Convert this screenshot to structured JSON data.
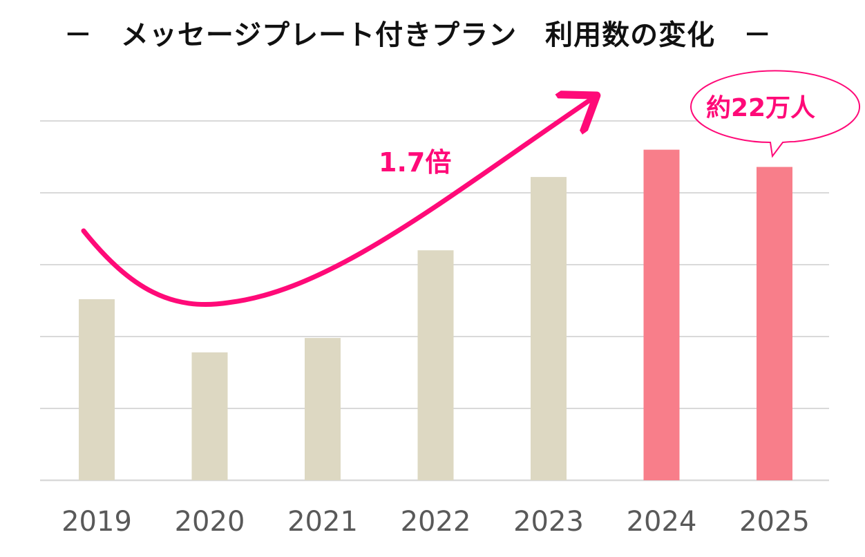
{
  "chart_data": {
    "type": "bar",
    "title": "－　メッセージプレート付きプラン　利用数の変化　－",
    "categories": [
      "2019",
      "2020",
      "2021",
      "2022",
      "2023",
      "2024",
      "2025"
    ],
    "values": [
      12.6,
      8.9,
      9.9,
      16.0,
      21.1,
      23.0,
      21.8
    ],
    "ylim": [
      0,
      25
    ],
    "grid": true,
    "bar_colors": [
      "#ddd8c2",
      "#ddd8c2",
      "#ddd8c2",
      "#ddd8c2",
      "#ddd8c2",
      "#f87e8a",
      "#f87e8a"
    ],
    "annotations": {
      "growth_label": "1.7倍",
      "callout_label": "約22万人"
    }
  },
  "colors": {
    "accent": "#ff0a78",
    "grid": "#d9d9d9",
    "tick_text": "#595959",
    "title_text": "#111111"
  }
}
